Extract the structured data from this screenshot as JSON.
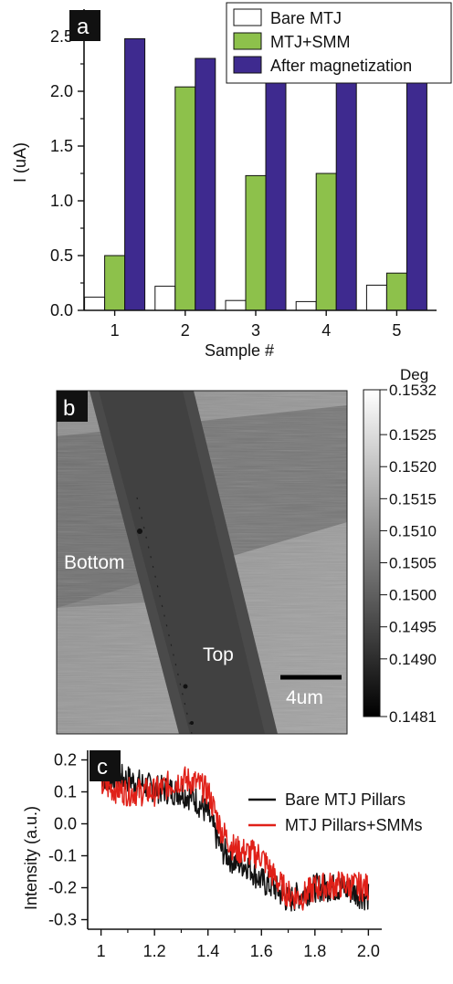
{
  "chart_data": [
    {
      "panel": "a",
      "type": "bar",
      "categories": [
        "1",
        "2",
        "3",
        "4",
        "5"
      ],
      "series": [
        {
          "name": "Bare MTJ",
          "values": [
            0.12,
            0.22,
            0.09,
            0.08,
            0.23
          ],
          "color": "#ffffff"
        },
        {
          "name": "MTJ+SMM",
          "values": [
            0.5,
            2.04,
            1.23,
            1.25,
            0.34
          ],
          "color": "#8dc14b"
        },
        {
          "name": "After magnetization",
          "values": [
            2.48,
            2.3,
            2.1,
            2.11,
            2.12
          ],
          "color": "#3e2a8f"
        }
      ],
      "xlabel": "Sample #",
      "ylabel": "I (uA)",
      "ylim": [
        0,
        2.75
      ],
      "yticks": [
        "0.0",
        "0.5",
        "1.0",
        "1.5",
        "2.0",
        "2.5"
      ],
      "legend_position": "top-right"
    },
    {
      "panel": "b",
      "type": "heatmap",
      "colorbar_title": "Deg",
      "colorbar_range": [
        0.1481,
        0.1532
      ],
      "colorbar_ticks": [
        "0.1532",
        "0.1525",
        "0.1520",
        "0.1515",
        "0.1510",
        "0.1505",
        "0.1500",
        "0.1495",
        "0.1490",
        "0.1481"
      ],
      "colorbar_tick_values": [
        0.1532,
        0.1525,
        0.152,
        0.1515,
        0.151,
        0.1505,
        0.15,
        0.1495,
        0.149,
        0.1481
      ],
      "annotations": [
        "Bottom",
        "Top"
      ],
      "scalebar_label": "4um"
    },
    {
      "panel": "c",
      "type": "line",
      "xlabel": "",
      "ylabel": "Intensity (a.u.)",
      "xlim": [
        0.95,
        2.05
      ],
      "ylim": [
        -0.33,
        0.23
      ],
      "xticks": [
        "1",
        "1.2",
        "1.4",
        "1.6",
        "1.8",
        "2.0"
      ],
      "yticks": [
        "0.2",
        "0.1",
        "0.0",
        "-0.1",
        "-0.2",
        "-0.3"
      ],
      "legend_position": "top-right",
      "series": [
        {
          "name": "Bare MTJ Pillars",
          "color": "#111111",
          "x": [
            1.0,
            1.1,
            1.2,
            1.3,
            1.35,
            1.4,
            1.45,
            1.5,
            1.55,
            1.6,
            1.65,
            1.7,
            1.75,
            1.8,
            1.9,
            2.0
          ],
          "y": [
            0.15,
            0.14,
            0.11,
            0.1,
            0.08,
            0.03,
            -0.08,
            -0.12,
            -0.13,
            -0.18,
            -0.2,
            -0.24,
            -0.22,
            -0.2,
            -0.2,
            -0.23
          ]
        },
        {
          "name": "MTJ Pillars+SMMs",
          "color": "#e02018",
          "x": [
            1.0,
            1.1,
            1.2,
            1.3,
            1.35,
            1.4,
            1.45,
            1.5,
            1.55,
            1.6,
            1.65,
            1.7,
            1.75,
            1.8,
            1.9,
            2.0
          ],
          "y": [
            0.12,
            0.1,
            0.1,
            0.14,
            0.13,
            0.1,
            -0.02,
            -0.08,
            -0.09,
            -0.1,
            -0.17,
            -0.22,
            -0.23,
            -0.2,
            -0.19,
            -0.2
          ]
        }
      ]
    }
  ]
}
